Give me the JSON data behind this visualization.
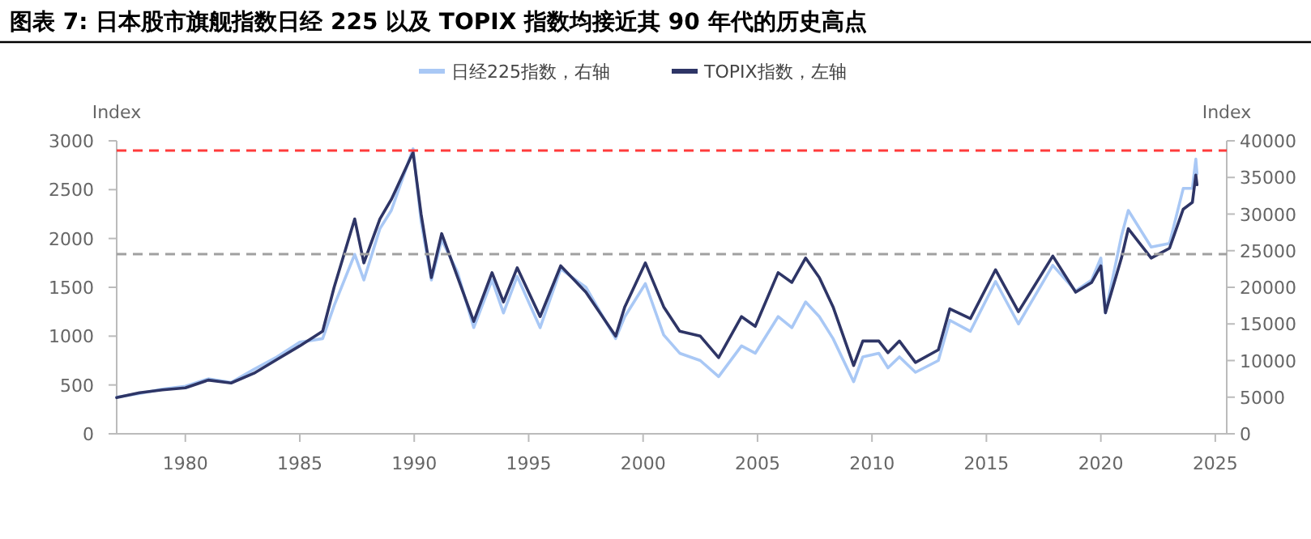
{
  "chart_data": {
    "type": "line",
    "title": "图表 7: 日本股市旗舰指数日经 225 以及 TOPIX 指数均接近其 90 年代的历史高点",
    "ylabel": "Index",
    "y2label": "Index",
    "legend": "top",
    "grid": false,
    "xlim": [
      1977,
      2025.5
    ],
    "xticks": [
      1980,
      1985,
      1990,
      1995,
      2000,
      2005,
      2010,
      2015,
      2020,
      2025
    ],
    "ylim": [
      0,
      3000
    ],
    "yticks": [
      0,
      500,
      1000,
      1500,
      2000,
      2500,
      3000
    ],
    "y2lim": [
      0,
      40000
    ],
    "y2ticks": [
      0,
      5000,
      10000,
      15000,
      20000,
      25000,
      30000,
      35000,
      40000
    ],
    "ref_lines": [
      {
        "axis": "y",
        "value": 2900,
        "color": "#ff3b3b",
        "line_style": "dashed"
      },
      {
        "axis": "y",
        "value": 1840,
        "color": "#a0a0a0",
        "line_style": "dashed"
      }
    ],
    "x": [
      1977,
      1978,
      1979,
      1980,
      1981,
      1982,
      1983,
      1984,
      1985,
      1986,
      1986.5,
      1987.4,
      1987.8,
      1988.5,
      1989,
      1989.95,
      1990.3,
      1990.75,
      1991.2,
      1991.9,
      1992.6,
      1993.4,
      1993.9,
      1994.5,
      1995.5,
      1996.4,
      1997.5,
      1998.8,
      1999.2,
      2000.1,
      2000.9,
      2001.6,
      2002.5,
      2003.3,
      2004.3,
      2004.9,
      2005.9,
      2006.5,
      2007.1,
      2007.7,
      2008.3,
      2009.2,
      2009.6,
      2010.3,
      2010.7,
      2011.2,
      2011.9,
      2012.9,
      2013.4,
      2014.3,
      2015.4,
      2016.4,
      2017.9,
      2018.9,
      2019.6,
      2020,
      2020.2,
      2020.9,
      2021.2,
      2022.2,
      2023,
      2023.6,
      2024,
      2024.15,
      2024.2
    ],
    "series": [
      {
        "name": "日经225指数，右轴",
        "color": "#a9c8f5",
        "axis": "y2",
        "values": [
          5000,
          5500,
          6100,
          6500,
          7500,
          7000,
          8800,
          10500,
          12500,
          13000,
          17500,
          24500,
          21000,
          28000,
          30500,
          38900,
          29000,
          21000,
          26500,
          22000,
          14500,
          21000,
          16500,
          21500,
          14500,
          22500,
          20000,
          13000,
          16000,
          20500,
          13500,
          11000,
          10000,
          7800,
          12000,
          11000,
          16000,
          14500,
          18000,
          16000,
          13000,
          7100,
          10500,
          11000,
          9000,
          10500,
          8400,
          10000,
          15500,
          14000,
          20800,
          15000,
          23000,
          19500,
          21000,
          24000,
          16500,
          27000,
          30500,
          25500,
          26000,
          33500,
          33500,
          37500,
          35500
        ]
      },
      {
        "name": "TOPIX指数，左轴",
        "color": "#2e3566",
        "axis": "y",
        "values": [
          370,
          420,
          450,
          470,
          550,
          520,
          620,
          760,
          900,
          1050,
          1500,
          2200,
          1750,
          2200,
          2400,
          2880,
          2250,
          1600,
          2050,
          1600,
          1150,
          1650,
          1350,
          1700,
          1200,
          1720,
          1450,
          1000,
          1300,
          1750,
          1300,
          1050,
          1000,
          780,
          1200,
          1100,
          1650,
          1550,
          1800,
          1600,
          1300,
          700,
          950,
          950,
          830,
          950,
          730,
          860,
          1280,
          1180,
          1680,
          1250,
          1820,
          1450,
          1550,
          1720,
          1240,
          1800,
          2100,
          1800,
          1900,
          2300,
          2370,
          2650,
          2550
        ]
      }
    ]
  }
}
